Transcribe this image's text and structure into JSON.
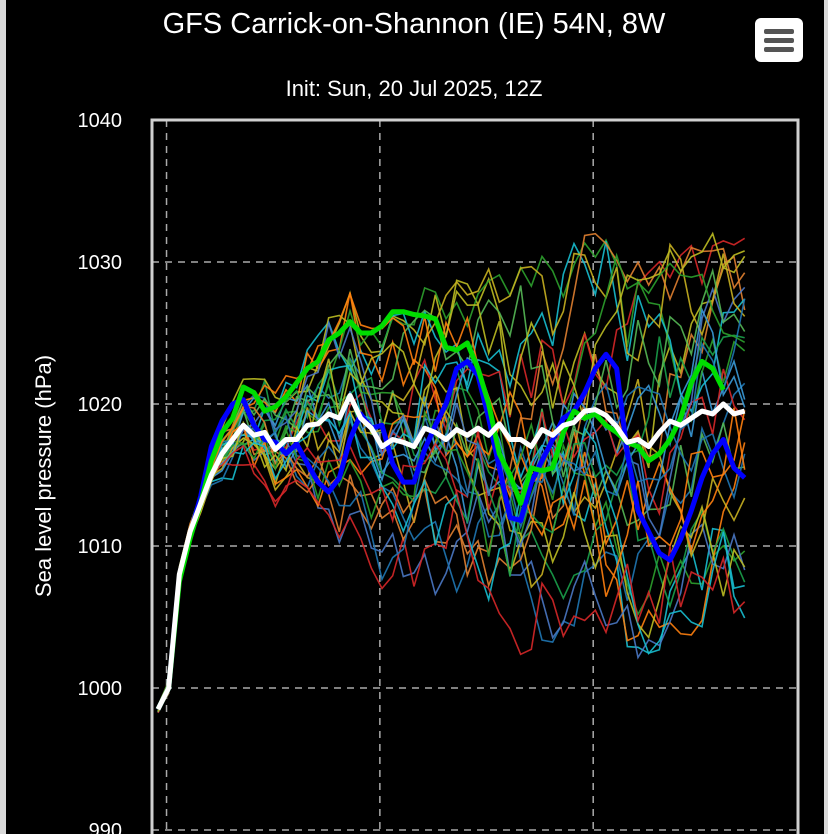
{
  "header": {
    "title": "GFS Carrick-on-Shannon (IE) 54N, 8W",
    "subtitle": "Init: Sun, 20 Jul 2025, 12Z",
    "menu_icon": "hamburger-menu-icon"
  },
  "chart_data": {
    "type": "line",
    "ylabel": "Sea level pressure (hPa)",
    "xlabel": "",
    "ylim": [
      990,
      1040
    ],
    "yticks": [
      990,
      1000,
      1010,
      1020,
      1030,
      1040
    ],
    "x_range": [
      0,
      60
    ],
    "x_gridlines": [
      0.8,
      20.8,
      40.8
    ],
    "grid": true,
    "background": "#000000",
    "highlighted_series": [
      {
        "color": "#ffffff",
        "values": [
          998.5,
          1000.0,
          1008.0,
          1011.0,
          1013.0,
          1015.0,
          1016.5,
          1017.5,
          1018.5,
          1017.8,
          1018.0,
          1016.8,
          1017.5,
          1017.5,
          1018.5,
          1018.6,
          1019.3,
          1019.0,
          1020.6,
          1019.0,
          1018.3,
          1017.0,
          1017.5,
          1017.3,
          1017.0,
          1018.3,
          1018.0,
          1017.5,
          1018.2,
          1017.8,
          1018.3,
          1017.8,
          1018.6,
          1017.5,
          1017.5,
          1017.0,
          1018.2,
          1017.8,
          1018.5,
          1018.7,
          1019.5,
          1019.6,
          1019.2,
          1018.4,
          1017.3,
          1017.5,
          1017.0,
          1018.0,
          1018.8,
          1018.5,
          1019.0,
          1019.5,
          1019.3,
          1020.0,
          1019.3,
          1019.5
        ]
      },
      {
        "color": "#00dd00",
        "values": [
          998.5,
          1000.0,
          1007.5,
          1010.5,
          1013.0,
          1016.0,
          1018.0,
          1019.0,
          1021.2,
          1020.8,
          1019.5,
          1019.8,
          1020.5,
          1021.5,
          1022.5,
          1023.0,
          1024.5,
          1025.0,
          1025.8,
          1025.0,
          1025.0,
          1025.5,
          1026.5,
          1026.5,
          1026.3,
          1026.2,
          1026.0,
          1024.0,
          1023.8,
          1024.3,
          1022.5,
          1020.0,
          1016.5,
          1015.0,
          1013.0,
          1015.5,
          1015.3,
          1015.5,
          1018.0,
          1019.5,
          1019.0,
          1019.3,
          1018.5,
          1018.0,
          1017.3,
          1017.0,
          1016.0,
          1016.5,
          1017.5,
          1019.0,
          1021.5,
          1023.0,
          1022.5,
          1021.0
        ]
      },
      {
        "color": "#0000ff",
        "values": [
          998.5,
          1000.0,
          1007.8,
          1010.8,
          1013.5,
          1017.0,
          1018.8,
          1020.0,
          1020.3,
          1018.5,
          1017.5,
          1017.3,
          1016.5,
          1017.2,
          1015.8,
          1014.5,
          1013.8,
          1014.8,
          1017.5,
          1019.3,
          1018.3,
          1018.5,
          1015.8,
          1014.5,
          1014.5,
          1016.8,
          1018.5,
          1020.0,
          1022.5,
          1023.0,
          1022.0,
          1019.0,
          1015.5,
          1012.0,
          1011.8,
          1014.5,
          1016.0,
          1017.5,
          1019.0,
          1019.5,
          1020.8,
          1022.5,
          1023.5,
          1022.5,
          1016.5,
          1012.5,
          1011.0,
          1009.5,
          1009.0,
          1010.5,
          1012.5,
          1014.8,
          1016.5,
          1017.5,
          1015.5,
          1014.8
        ]
      }
    ]
  }
}
